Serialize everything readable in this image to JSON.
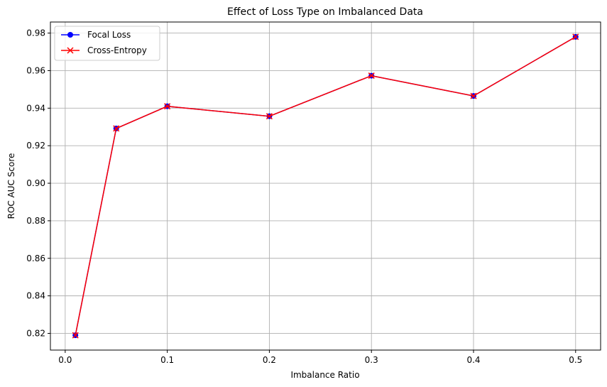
{
  "chart_data": {
    "type": "line",
    "title": "Effect of Loss Type on Imbalanced Data",
    "xlabel": "Imbalance Ratio",
    "ylabel": "ROC AUC Score",
    "xlim": [
      -0.0145,
      0.5245
    ],
    "ylim": [
      0.8111,
      0.9859
    ],
    "x_ticks": [
      0.0,
      0.1,
      0.2,
      0.3,
      0.4,
      0.5
    ],
    "x_tick_labels": [
      "0.0",
      "0.1",
      "0.2",
      "0.3",
      "0.4",
      "0.5"
    ],
    "y_ticks": [
      0.82,
      0.84,
      0.86,
      0.88,
      0.9,
      0.92,
      0.94,
      0.96,
      0.98
    ],
    "y_tick_labels": [
      "0.82",
      "0.84",
      "0.86",
      "0.88",
      "0.90",
      "0.92",
      "0.94",
      "0.96",
      "0.98"
    ],
    "grid": true,
    "legend_position": "top-left",
    "x": [
      0.01,
      0.05,
      0.1,
      0.2,
      0.3,
      0.4,
      0.5
    ],
    "series": [
      {
        "name": "Focal Loss",
        "color": "#0000ff",
        "marker": "circle",
        "values": [
          0.819,
          0.9292,
          0.941,
          0.9357,
          0.9573,
          0.9465,
          0.978
        ]
      },
      {
        "name": "Cross-Entropy",
        "color": "#ff0000",
        "marker": "x",
        "values": [
          0.819,
          0.9292,
          0.941,
          0.9357,
          0.9573,
          0.9465,
          0.978
        ]
      }
    ]
  }
}
